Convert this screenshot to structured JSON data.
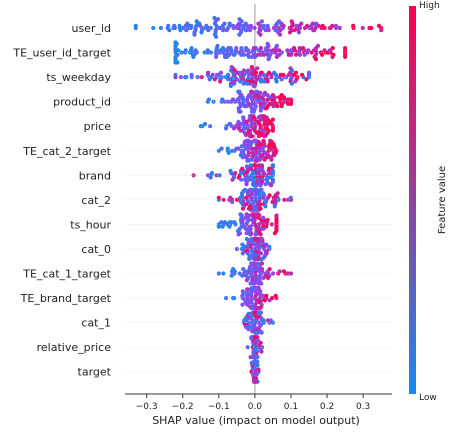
{
  "chart_data": {
    "type": "scatter",
    "subtype": "shap-beeswarm",
    "title": "",
    "xlabel": "SHAP value (impact on model output)",
    "ylabel": "",
    "xlim": [
      -0.36,
      0.38
    ],
    "xticks": [
      -0.3,
      -0.2,
      -0.1,
      0.0,
      0.1,
      0.2,
      0.3
    ],
    "xtick_labels": [
      "−0.3",
      "−0.2",
      "−0.1",
      "0.0",
      "0.1",
      "0.2",
      "0.3"
    ],
    "grid": false,
    "features": [
      {
        "name": "user_id",
        "min": -0.33,
        "max": 0.35,
        "spread": 0.12,
        "dir": 1,
        "n": 150
      },
      {
        "name": "TE_user_id_target",
        "min": -0.22,
        "max": 0.25,
        "spread": 0.1,
        "dir": 1,
        "n": 150
      },
      {
        "name": "ts_weekday",
        "min": -0.22,
        "max": 0.15,
        "spread": 0.07,
        "dir": 0,
        "n": 130
      },
      {
        "name": "product_id",
        "min": -0.13,
        "max": 0.1,
        "spread": 0.04,
        "dir": 1,
        "n": 110
      },
      {
        "name": "price",
        "min": -0.15,
        "max": 0.05,
        "spread": 0.025,
        "dir": 1,
        "n": 100
      },
      {
        "name": "TE_cat_2_target",
        "min": -0.1,
        "max": 0.06,
        "spread": 0.025,
        "dir": 1,
        "n": 100
      },
      {
        "name": "brand",
        "min": -0.17,
        "max": 0.05,
        "spread": 0.03,
        "dir": 0,
        "n": 100
      },
      {
        "name": "cat_2",
        "min": -0.1,
        "max": 0.1,
        "spread": 0.03,
        "dir": 0,
        "n": 100
      },
      {
        "name": "ts_hour",
        "min": -0.1,
        "max": 0.06,
        "spread": 0.03,
        "dir": 1,
        "n": 100
      },
      {
        "name": "cat_0",
        "min": -0.05,
        "max": 0.04,
        "spread": 0.012,
        "dir": 0,
        "n": 80
      },
      {
        "name": "TE_cat_1_target",
        "min": -0.1,
        "max": 0.1,
        "spread": 0.015,
        "dir": 1,
        "n": 80
      },
      {
        "name": "TE_brand_target",
        "min": -0.08,
        "max": 0.06,
        "spread": 0.012,
        "dir": 1,
        "n": 80
      },
      {
        "name": "cat_1",
        "min": -0.03,
        "max": 0.05,
        "spread": 0.01,
        "dir": 0,
        "n": 60
      },
      {
        "name": "relative_price",
        "min": -0.02,
        "max": 0.02,
        "spread": 0.005,
        "dir": 0,
        "n": 50
      },
      {
        "name": "target",
        "min": -0.01,
        "max": 0.01,
        "spread": 0.003,
        "dir": 0,
        "n": 40
      }
    ],
    "colorbar": {
      "label": "Feature value",
      "high_label": "High",
      "low_label": "Low",
      "low_color": "#1e88e5",
      "high_color": "#ff0052"
    }
  }
}
